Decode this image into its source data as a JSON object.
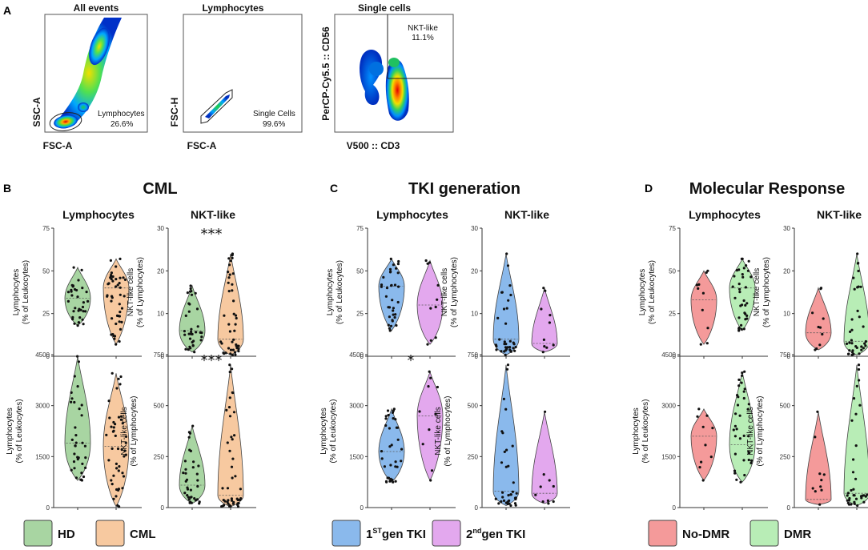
{
  "panel_letters": {
    "a": "A",
    "b": "B",
    "c": "C",
    "d": "D"
  },
  "flow": {
    "plots": [
      {
        "title": "All events",
        "xlabel": "FSC-A",
        "ylabel": "SSC-A",
        "gate_label": "Lymphocytes",
        "gate_value": "26.6%"
      },
      {
        "title": "Lymphocytes",
        "xlabel": "FSC-A",
        "ylabel": "FSC-H",
        "gate_label": "Single Cells",
        "gate_value": "99.6%"
      },
      {
        "title": "Single cells",
        "xlabel": "V500 :: CD3",
        "ylabel": "PerCP-Cy5.5 :: CD56",
        "gate_label": "NKT-like",
        "gate_value": "11.1%"
      }
    ]
  },
  "chart_data": [
    {
      "type": "violin",
      "panel": "B",
      "title": "CML",
      "groups": [
        "HD",
        "CML"
      ],
      "colors": [
        "#a8d5a2",
        "#f7c9a0"
      ],
      "legend": [
        "HD",
        "CML"
      ],
      "subplots": [
        {
          "id": "b1",
          "header": "Lymphocytes",
          "ylabel": [
            "Lymphocytes",
            "(% of Leukocytes)"
          ],
          "yticks": [
            "0",
            "25",
            "50",
            "75"
          ],
          "ylim": [
            0,
            75
          ],
          "series": [
            {
              "min": 18,
              "max": 52,
              "median": 34,
              "n": 35
            },
            {
              "min": 7,
              "max": 57,
              "median": 40,
              "n": 45
            }
          ],
          "sig": ""
        },
        {
          "id": "b2",
          "header": "NKT-like",
          "ylabel": [
            "NKT-like cells",
            "(% of Lymphocytes)"
          ],
          "yticks": [
            "0",
            "10",
            "20",
            "30"
          ],
          "ylim": [
            0,
            30
          ],
          "series": [
            {
              "min": 1,
              "max": 16.5,
              "median": 6,
              "n": 35
            },
            {
              "min": 0.3,
              "max": 24,
              "median": 4,
              "n": 45
            }
          ],
          "sig": "***"
        },
        {
          "id": "b3",
          "header": "",
          "ylabel": [
            "Lymphocytes",
            "(% of Leukocytes)"
          ],
          "yticks": [
            "0",
            "1500",
            "3000",
            "4500"
          ],
          "ylim": [
            0,
            4500
          ],
          "series": [
            {
              "min": 800,
              "max": 4450,
              "median": 1900,
              "n": 35
            },
            {
              "min": 30,
              "max": 3950,
              "median": 1800,
              "n": 45
            }
          ],
          "sig": ""
        },
        {
          "id": "b4",
          "header": "",
          "ylabel": [
            "NKT-like cells",
            "(% of Lymphocytes)"
          ],
          "yticks": [
            "0",
            "250",
            "500",
            "750"
          ],
          "ylim": [
            0,
            750
          ],
          "series": [
            {
              "min": 20,
              "max": 400,
              "median": 110,
              "n": 35
            },
            {
              "min": 5,
              "max": 700,
              "median": 60,
              "n": 45
            }
          ],
          "sig": "***"
        }
      ]
    },
    {
      "type": "violin",
      "panel": "C",
      "title": "TKI generation",
      "groups": [
        "1STgen TKI",
        "2ndgen TKI"
      ],
      "colors": [
        "#8ab9ec",
        "#e3a8ee"
      ],
      "legend": [
        {
          "main": "1",
          "sup": "ST",
          "rest": "gen TKI"
        },
        {
          "main": "2",
          "sup": "nd",
          "rest": "gen TKI"
        }
      ],
      "subplots": [
        {
          "id": "c1",
          "header": "Lymphocytes",
          "ylabel": [
            "Lymphocytes",
            "(% of Leukocytes)"
          ],
          "yticks": [
            "0",
            "25",
            "50",
            "75"
          ],
          "ylim": [
            0,
            75
          ],
          "series": [
            {
              "min": 15,
              "max": 57,
              "median": 41,
              "n": 35
            },
            {
              "min": 7,
              "max": 56,
              "median": 30,
              "n": 10
            }
          ],
          "sig": ""
        },
        {
          "id": "c2",
          "header": "NKT-like",
          "ylabel": [
            "NKT-like cells",
            "(% of Lymphocytes)"
          ],
          "yticks": [
            "0",
            "10",
            "20",
            "30"
          ],
          "ylim": [
            0,
            30
          ],
          "series": [
            {
              "min": 0.3,
              "max": 24,
              "median": 4,
              "n": 35
            },
            {
              "min": 1,
              "max": 16,
              "median": 3,
              "n": 10
            }
          ],
          "sig": ""
        },
        {
          "id": "c3",
          "header": "",
          "ylabel": [
            "Lymphocytes",
            "(% of Leukocytes)"
          ],
          "yticks": [
            "0",
            "1500",
            "3000",
            "4500"
          ],
          "ylim": [
            0,
            4500
          ],
          "series": [
            {
              "min": 750,
              "max": 2900,
              "median": 1650,
              "n": 35
            },
            {
              "min": 800,
              "max": 4000,
              "median": 2700,
              "n": 10
            }
          ],
          "sig": "*"
        },
        {
          "id": "c4",
          "header": "",
          "ylabel": [
            "NKT-like cells",
            "(% of Lymphocytes)"
          ],
          "yticks": [
            "0",
            "250",
            "500",
            "750"
          ],
          "ylim": [
            0,
            750
          ],
          "series": [
            {
              "min": 10,
              "max": 700,
              "median": 80,
              "n": 35
            },
            {
              "min": 20,
              "max": 470,
              "median": 70,
              "n": 10
            }
          ],
          "sig": ""
        }
      ]
    },
    {
      "type": "violin",
      "panel": "D",
      "title": "Molecular Response",
      "groups": [
        "No-DMR",
        "DMR"
      ],
      "colors": [
        "#f49a9a",
        "#b8edb6"
      ],
      "legend": [
        "No-DMR",
        "DMR"
      ],
      "subplots": [
        {
          "id": "d1",
          "header": "Lymphocytes",
          "ylabel": [
            "Lymphocytes",
            "(% of Leukocytes)"
          ],
          "yticks": [
            "0",
            "25",
            "50",
            "75"
          ],
          "ylim": [
            0,
            75
          ],
          "series": [
            {
              "min": 7,
              "max": 50,
              "median": 33,
              "n": 10
            },
            {
              "min": 15,
              "max": 57,
              "median": 40,
              "n": 35
            }
          ],
          "sig": ""
        },
        {
          "id": "d2",
          "header": "NKT-like",
          "ylabel": [
            "NKT-like cells",
            "(% of Lymphocytes)"
          ],
          "yticks": [
            "0",
            "10",
            "20",
            "30"
          ],
          "ylim": [
            0,
            30
          ],
          "series": [
            {
              "min": 1.5,
              "max": 16,
              "median": 5.5,
              "n": 10
            },
            {
              "min": 0.3,
              "max": 24,
              "median": 3.5,
              "n": 35
            }
          ],
          "sig": ""
        },
        {
          "id": "d3",
          "header": "",
          "ylabel": [
            "Lymphocytes",
            "(% of Leukocytes)"
          ],
          "yticks": [
            "0",
            "1500",
            "3000",
            "4500"
          ],
          "ylim": [
            0,
            4500
          ],
          "series": [
            {
              "min": 800,
              "max": 2900,
              "median": 2100,
              "n": 10
            },
            {
              "min": 750,
              "max": 4000,
              "median": 1850,
              "n": 35
            }
          ],
          "sig": ""
        },
        {
          "id": "d4",
          "header": "",
          "ylabel": [
            "NKT-like cells",
            "(% of Lymphocytes)"
          ],
          "yticks": [
            "0",
            "250",
            "500",
            "750"
          ],
          "ylim": [
            0,
            750
          ],
          "series": [
            {
              "min": 15,
              "max": 470,
              "median": 40,
              "n": 10
            },
            {
              "min": 10,
              "max": 700,
              "median": 70,
              "n": 35
            }
          ],
          "sig": ""
        }
      ]
    }
  ]
}
